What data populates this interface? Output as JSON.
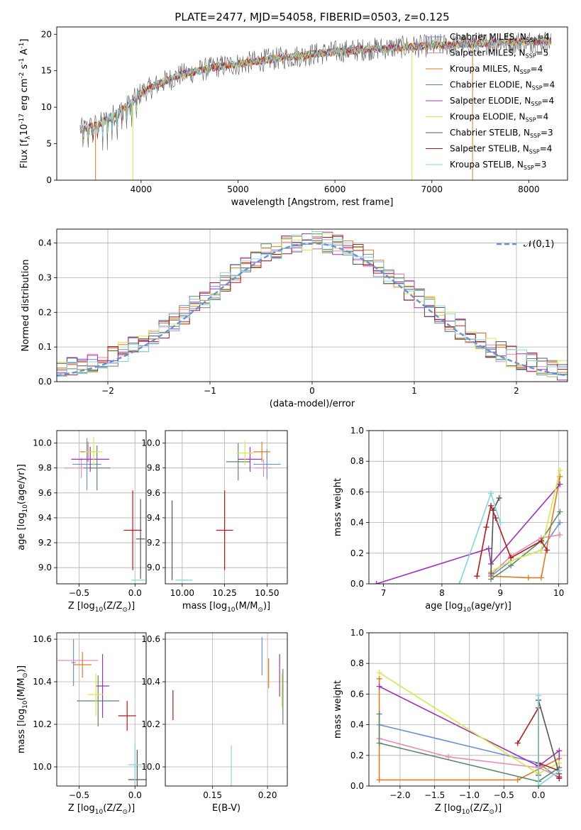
{
  "figure": {
    "title": "PLATE=2477, MJD=54058, FIBERID=0503, z=0.125"
  },
  "series_styles": [
    {
      "name": "Chabrier MILES, N$_{SSP}$=4",
      "label": "Chabrier MILES, N",
      "sub": "SSP",
      "tail": "=4",
      "color": "#6b8fd9"
    },
    {
      "name": "Salpeter MILES, N$_{SSP}$=5",
      "label": "Salpeter MILES, N",
      "sub": "SSP",
      "tail": "=5",
      "color": "#e88ab8"
    },
    {
      "name": "Kroupa MILES, N$_{SSP}$=4",
      "label": "Kroupa MILES, N",
      "sub": "SSP",
      "tail": "=4",
      "color": "#e07b22"
    },
    {
      "name": "Chabrier ELODIE, N$_{SSP}$=4",
      "label": "Chabrier ELODIE, N",
      "sub": "SSP",
      "tail": "=4",
      "color": "#5b8a6a"
    },
    {
      "name": "Salpeter ELODIE, N$_{SSP}$=4",
      "label": "Salpeter ELODIE, N",
      "sub": "SSP",
      "tail": "=4",
      "color": "#9d35b6"
    },
    {
      "name": "Kroupa ELODIE, N$_{SSP}$=4",
      "label": "Kroupa ELODIE, N",
      "sub": "SSP",
      "tail": "=4",
      "color": "#d8e84a"
    },
    {
      "name": "Chabrier STELIB, N$_{SSP}$=3",
      "label": "Chabrier STELIB, N",
      "sub": "SSP",
      "tail": "=3",
      "color": "#555555"
    },
    {
      "name": "Salpeter STELIB, N$_{SSP}$=4",
      "label": "Salpeter STELIB, N",
      "sub": "SSP",
      "tail": "=4",
      "color": "#b01c1c"
    },
    {
      "name": "Kroupa STELIB, N$_{SSP}$=3",
      "label": "Kroupa STELIB, N",
      "sub": "SSP",
      "tail": "=3",
      "color": "#7fd8d8"
    }
  ],
  "chart_data": [
    {
      "id": "spectrum",
      "type": "line",
      "title": "PLATE=2477, MJD=54058, FIBERID=0503, z=0.125",
      "xlabel": "wavelength [Angstrom, rest frame]",
      "ylabel": "Flux [f$_\\lambda$10$^{-17}$ erg cm$^{-2}$ s$^{-1}$ A$^{-1}$]",
      "xlim": [
        3130,
        8400
      ],
      "ylim": [
        0,
        21
      ],
      "xticks": [
        4000,
        5000,
        6000,
        7000,
        8000
      ],
      "yticks": [
        0,
        5,
        10,
        15,
        20
      ],
      "grid": false,
      "legend": "right",
      "continuum": {
        "x": [
          3400,
          3500,
          3600,
          3700,
          3800,
          3900,
          4000,
          4200,
          4400,
          4600,
          4800,
          5000,
          5300,
          5600,
          6000,
          6400,
          6800,
          7200,
          7600,
          8000,
          8200
        ],
        "y": [
          7.0,
          7.4,
          7.9,
          8.8,
          9.6,
          10.6,
          12.0,
          13.3,
          14.4,
          15.0,
          15.6,
          15.9,
          16.5,
          17.0,
          17.6,
          18.0,
          18.3,
          18.6,
          18.8,
          19.0,
          19.0
        ]
      },
      "dips": [
        {
          "x": 3530,
          "to": 0,
          "series": 2
        },
        {
          "x": 3915,
          "to": 0,
          "series": 5
        },
        {
          "x": 6795,
          "to": 0,
          "series": 5
        },
        {
          "x": 7420,
          "to": 0,
          "series": 2
        }
      ]
    },
    {
      "id": "residuals",
      "type": "histogram",
      "xlabel": "(data-model)/error",
      "ylabel": "Normed distribution",
      "xlim": [
        -2.5,
        2.5
      ],
      "ylim": [
        0,
        0.44
      ],
      "xticks": [
        -2,
        -1,
        0,
        1,
        2
      ],
      "yticks": [
        0.0,
        0.1,
        0.2,
        0.3,
        0.4
      ],
      "grid": true,
      "legend": "top-right",
      "reference": {
        "name": "$\\mathcal{N}(0,1)$",
        "mu": 0,
        "sigma": 1,
        "color": "#6b8fd9"
      },
      "bin_width": 0.1
    },
    {
      "id": "age-vs-Z",
      "type": "errorbar",
      "xlabel": "Z [log$_{10}$(Z/Z$_\\odot$)]",
      "ylabel": "age  [log$_{10}$(age/yr)]",
      "xlim": [
        -0.7,
        0.1
      ],
      "ylim": [
        8.87,
        10.1
      ],
      "xticks": [
        -0.5,
        0.0
      ],
      "yticks": [
        9.0,
        9.2,
        9.4,
        9.6,
        9.8,
        10.0
      ],
      "grid": true,
      "points": [
        {
          "series": 0,
          "x": -0.43,
          "xerr": 0.13,
          "y": 9.83,
          "yerr": 0.21
        },
        {
          "series": 1,
          "x": -0.48,
          "xerr": 0.15,
          "y": 9.8,
          "yerr": 0.08
        },
        {
          "series": 2,
          "x": -0.42,
          "xerr": 0.07,
          "y": 9.93,
          "yerr": 0.08
        },
        {
          "series": 3,
          "x": -0.34,
          "xerr": 0.12,
          "y": 9.8,
          "yerr": 0.18
        },
        {
          "series": 4,
          "x": -0.4,
          "xerr": 0.17,
          "y": 9.87,
          "yerr": 0.1
        },
        {
          "series": 5,
          "x": -0.37,
          "xerr": 0.08,
          "y": 9.93,
          "yerr": 0.12
        },
        {
          "series": 6,
          "x": 0.05,
          "xerr": 0.04,
          "y": 9.23,
          "yerr": 0.32
        },
        {
          "series": 7,
          "x": -0.02,
          "xerr": 0.08,
          "y": 9.3,
          "yerr": 0.32
        },
        {
          "series": 8,
          "x": 0.03,
          "xerr": 0.06,
          "y": 8.9,
          "yerr": 0.0
        }
      ]
    },
    {
      "id": "age-vs-mass",
      "type": "errorbar",
      "xlabel": "mass [log$_{10}$(M/M$_\\odot$)]",
      "ylabel": "",
      "xlim": [
        9.9,
        10.62
      ],
      "ylim": [
        8.87,
        10.1
      ],
      "xticks": [
        10.0,
        10.25,
        10.5
      ],
      "yticks": [
        9.0,
        9.2,
        9.4,
        9.6,
        9.8,
        10.0
      ],
      "grid": true,
      "points": [
        {
          "series": 0,
          "x": 10.5,
          "xerr": 0.08,
          "y": 9.83,
          "yerr": 0.12
        },
        {
          "series": 1,
          "x": 10.48,
          "xerr": 0.05,
          "y": 9.8,
          "yerr": 0.07
        },
        {
          "series": 2,
          "x": 10.47,
          "xerr": 0.05,
          "y": 9.93,
          "yerr": 0.08
        },
        {
          "series": 3,
          "x": 10.33,
          "xerr": 0.07,
          "y": 9.85,
          "yerr": 0.15
        },
        {
          "series": 4,
          "x": 10.4,
          "xerr": 0.07,
          "y": 9.87,
          "yerr": 0.1
        },
        {
          "series": 5,
          "x": 10.37,
          "xerr": 0.05,
          "y": 9.92,
          "yerr": 0.1
        },
        {
          "series": 6,
          "x": 9.94,
          "xerr": 0.0,
          "y": 9.22,
          "yerr": 0.32
        },
        {
          "series": 7,
          "x": 10.25,
          "xerr": 0.05,
          "y": 9.3,
          "yerr": 0.32
        },
        {
          "series": 8,
          "x": 10.01,
          "xerr": 0.05,
          "y": 8.9,
          "yerr": 0.0
        }
      ]
    },
    {
      "id": "weight-vs-age",
      "type": "line",
      "xlabel": "age  [log$_{10}$(age/yr)]",
      "ylabel": "mass weight",
      "xlim": [
        6.75,
        10.15
      ],
      "ylim": [
        0,
        1.0
      ],
      "xticks": [
        7,
        8,
        9,
        10
      ],
      "yticks": [
        0.0,
        0.2,
        0.4,
        0.6,
        0.8,
        1.0
      ],
      "grid": true,
      "series": [
        {
          "series": 0,
          "x": [
            8.84,
            9.18,
            9.7,
            10.02
          ],
          "y": [
            0.05,
            0.15,
            0.22,
            0.4
          ]
        },
        {
          "series": 1,
          "x": [
            8.84,
            9.18,
            9.7,
            10.02
          ],
          "y": [
            0.06,
            0.18,
            0.3,
            0.32
          ]
        },
        {
          "series": 2,
          "x": [
            8.84,
            9.48,
            9.7,
            10.02
          ],
          "y": [
            0.05,
            0.04,
            0.04,
            0.7
          ]
        },
        {
          "series": 3,
          "x": [
            8.84,
            9.18,
            9.7,
            10.02
          ],
          "y": [
            0.03,
            0.12,
            0.28,
            0.47
          ]
        },
        {
          "series": 4,
          "x": [
            6.88,
            8.8,
            8.84,
            10.02
          ],
          "y": [
            0.0,
            0.23,
            0.13,
            0.65
          ]
        },
        {
          "series": 5,
          "x": [
            8.84,
            9.18,
            9.7,
            10.02
          ],
          "y": [
            0.08,
            0.15,
            0.22,
            0.74
          ]
        },
        {
          "series": 6,
          "x": [
            8.84,
            8.88,
            8.98
          ],
          "y": [
            0.07,
            0.48,
            0.56
          ]
        },
        {
          "series": 7,
          "x": [
            8.6,
            8.76,
            8.84,
            8.92,
            9.18,
            9.7,
            9.8
          ],
          "y": [
            0.05,
            0.37,
            0.51,
            0.43,
            0.17,
            0.28,
            0.22
          ]
        },
        {
          "series": 8,
          "x": [
            8.3,
            8.84,
            9.0
          ],
          "y": [
            0.0,
            0.59,
            0.4
          ]
        }
      ]
    },
    {
      "id": "mass-vs-Z",
      "type": "errorbar",
      "xlabel": "Z [log$_{10}$(Z/Z$_\\odot$)]",
      "ylabel": "mass [log$_{10}$(M/M$_\\odot$)]",
      "xlim": [
        -0.7,
        0.1
      ],
      "ylim": [
        9.91,
        10.63
      ],
      "xticks": [
        -0.5,
        0.0
      ],
      "yticks": [
        10.0,
        10.2,
        10.4,
        10.6
      ],
      "grid": true,
      "points": [
        {
          "series": 0,
          "x": -0.55,
          "xerr": 0.02,
          "y": 10.49,
          "yerr": 0.11
        },
        {
          "series": 1,
          "x": -0.51,
          "xerr": 0.18,
          "y": 10.5,
          "yerr": 0.0
        },
        {
          "series": 2,
          "x": -0.47,
          "xerr": 0.08,
          "y": 10.48,
          "yerr": 0.06
        },
        {
          "series": 3,
          "x": -0.33,
          "xerr": 0.19,
          "y": 10.31,
          "yerr": 0.12
        },
        {
          "series": 4,
          "x": -0.29,
          "xerr": 0.06,
          "y": 10.38,
          "yerr": 0.15
        },
        {
          "series": 5,
          "x": -0.35,
          "xerr": 0.07,
          "y": 10.34,
          "yerr": 0.1
        },
        {
          "series": 6,
          "x": 0.02,
          "xerr": 0.08,
          "y": 9.94,
          "yerr": 0.14
        },
        {
          "series": 7,
          "x": -0.07,
          "xerr": 0.08,
          "y": 10.24,
          "yerr": 0.07
        },
        {
          "series": 8,
          "x": 0.0,
          "xerr": 0.06,
          "y": 10.01,
          "yerr": 0.1
        }
      ]
    },
    {
      "id": "mass-vs-EBV",
      "type": "errorbar",
      "xlabel": "E(B-V)",
      "ylabel": "",
      "xlim": [
        0.107,
        0.218
      ],
      "ylim": [
        9.91,
        10.63
      ],
      "xticks": [
        0.15,
        0.2
      ],
      "yticks": [
        10.0,
        10.2,
        10.4,
        10.6
      ],
      "grid": true,
      "points": [
        {
          "series": 0,
          "x": 0.195,
          "xerr": 0.0,
          "y": 10.52,
          "yerr": 0.09
        },
        {
          "series": 2,
          "x": 0.201,
          "xerr": 0.0,
          "y": 10.44,
          "yerr": 0.07
        },
        {
          "series": 3,
          "x": 0.214,
          "xerr": 0.0,
          "y": 10.33,
          "yerr": 0.13
        },
        {
          "series": 4,
          "x": 0.211,
          "xerr": 0.0,
          "y": 10.43,
          "yerr": 0.1
        },
        {
          "series": 5,
          "x": 0.213,
          "xerr": 0.0,
          "y": 10.36,
          "yerr": 0.08
        },
        {
          "series": 7,
          "x": 0.114,
          "xerr": 0.0,
          "y": 10.29,
          "yerr": 0.07
        },
        {
          "series": 8,
          "x": 0.167,
          "xerr": 0.0,
          "y": 10.0,
          "yerr": 0.1
        }
      ]
    },
    {
      "id": "weight-vs-Z",
      "type": "line",
      "xlabel": "Z [log$_{10}$(Z/Z$_\\odot$)]",
      "ylabel": "mass weight",
      "xlim": [
        -2.45,
        0.42
      ],
      "ylim": [
        0,
        1.0
      ],
      "xticks": [
        -2.0,
        -1.5,
        -1.0,
        -0.5,
        0.0
      ],
      "yticks": [
        0.0,
        0.2,
        0.4,
        0.6,
        0.8,
        1.0
      ],
      "grid": true,
      "series": [
        {
          "series": 0,
          "x": [
            -2.3,
            0.0,
            0.3
          ],
          "y": [
            0.4,
            0.15,
            0.05
          ]
        },
        {
          "series": 1,
          "x": [
            -2.3,
            -1.3,
            0.0,
            0.3
          ],
          "y": [
            0.31,
            0.19,
            0.12,
            0.06
          ]
        },
        {
          "series": 2,
          "x": [
            -2.3,
            -2.3,
            -0.3,
            0.3
          ],
          "y": [
            0.7,
            0.04,
            0.04,
            0.18
          ]
        },
        {
          "series": 3,
          "x": [
            -2.3,
            -2.3,
            0.0,
            0.3
          ],
          "y": [
            0.47,
            0.28,
            0.03,
            0.12
          ]
        },
        {
          "series": 4,
          "x": [
            -2.3,
            0.0,
            0.3,
            0.3
          ],
          "y": [
            0.65,
            0.13,
            0.23,
            0.06
          ]
        },
        {
          "series": 5,
          "x": [
            -2.3,
            0.0,
            0.3
          ],
          "y": [
            0.74,
            0.08,
            0.15
          ]
        },
        {
          "series": 6,
          "x": [
            0.0,
            0.0,
            0.3
          ],
          "y": [
            0.07,
            0.56,
            0.08
          ]
        },
        {
          "series": 7,
          "x": [
            -0.3,
            0.0,
            0.0,
            0.3,
            0.3
          ],
          "y": [
            0.28,
            0.51,
            0.15,
            0.1,
            0.05
          ]
        },
        {
          "series": 8,
          "x": [
            0.0,
            0.0,
            0.3
          ],
          "y": [
            0.59,
            0.0,
            0.1
          ]
        }
      ]
    }
  ]
}
